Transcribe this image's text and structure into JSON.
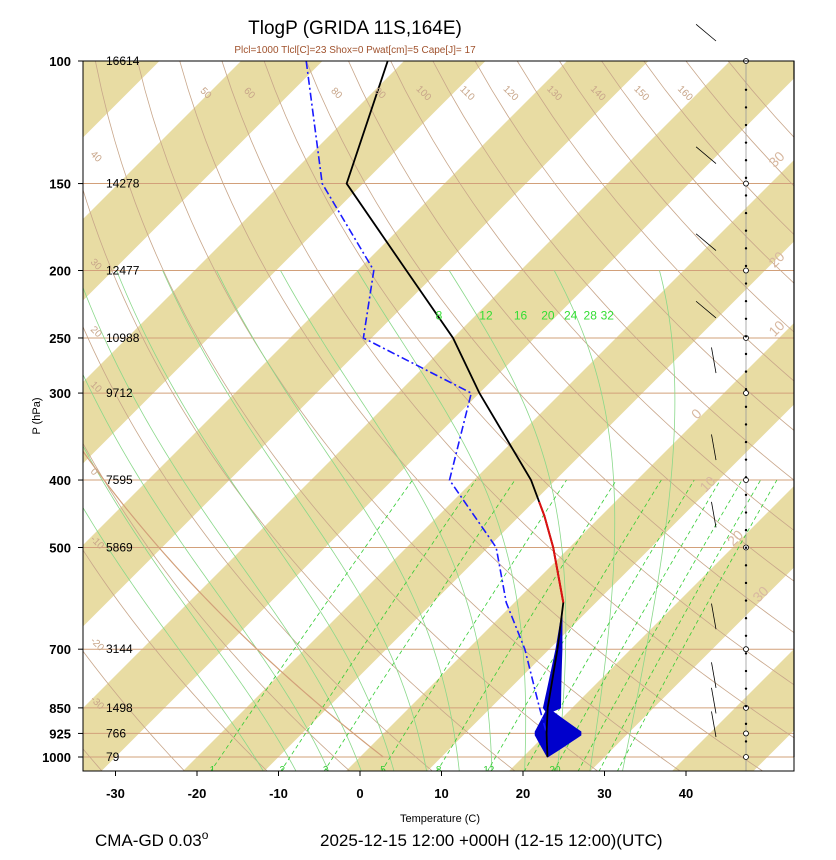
{
  "header": {
    "title": "TlogP   (GRIDA  11S,164E)",
    "params": "Plcl=1000 Tlcl[C]=23 Shox=0 Pwat[cm]=5 Cape[J]= 17"
  },
  "footer": {
    "left_text": "CMA-GD 0.03",
    "left_superscript": "o",
    "right_text": "2025-12-15 12:00 +000H (12-15 12:00)(UTC)"
  },
  "chart_data": {
    "type": "skew-t log-p",
    "title": "TlogP   (GRIDA  11S,164E)",
    "xlabel": "Temperature (C)",
    "ylabel": "P (hPa)",
    "pressure_levels": [
      {
        "p": 100,
        "label": "100",
        "height": "16614"
      },
      {
        "p": 150,
        "label": "150",
        "height": "14278"
      },
      {
        "p": 200,
        "label": "200",
        "height": "12477"
      },
      {
        "p": 250,
        "label": "250",
        "height": "10988"
      },
      {
        "p": 300,
        "label": "300",
        "height": "9712"
      },
      {
        "p": 400,
        "label": "400",
        "height": "7595"
      },
      {
        "p": 500,
        "label": "500",
        "height": "5869"
      },
      {
        "p": 700,
        "label": "700",
        "height": "3144"
      },
      {
        "p": 850,
        "label": "850",
        "height": "1498"
      },
      {
        "p": 925,
        "label": "925",
        "height": "766"
      },
      {
        "p": 1000,
        "label": "1000",
        "height": "79"
      }
    ],
    "x_ticks": [
      "-30",
      "-20",
      "-10",
      "0",
      "10",
      "20",
      "30",
      "40"
    ],
    "x_tick_values": [
      -30,
      -20,
      -10,
      0,
      10,
      20,
      30,
      40
    ],
    "xlim": [
      -35,
      50
    ],
    "ylim": [
      100,
      1050
    ],
    "isotherm_labels": [
      {
        "t": 30,
        "p": 140,
        "label": "30"
      },
      {
        "t": 20,
        "p": 195,
        "label": "20"
      },
      {
        "t": 10,
        "p": 245,
        "label": "10"
      },
      {
        "t": 0,
        "p": 325,
        "label": "0"
      },
      {
        "t": 10,
        "p": 410,
        "label": "10"
      },
      {
        "t": 20,
        "p": 490,
        "label": "20"
      },
      {
        "t": 30,
        "p": 590,
        "label": "30"
      }
    ],
    "theta_labels": [
      "50",
      "60",
      "80",
      "90",
      "100",
      "110",
      "120",
      "130",
      "140",
      "150",
      "160",
      "40",
      "30",
      "20",
      "10",
      "0",
      "-10",
      "-20",
      "-30"
    ],
    "theta_top_values": [
      50,
      60,
      80,
      90,
      100,
      110,
      120,
      130,
      140,
      150,
      160
    ],
    "theta_left_values": [
      40,
      30,
      20,
      10,
      0,
      -10,
      -20,
      -30
    ],
    "mixing_ratio_top": [
      "8",
      "12",
      "16",
      "20",
      "24",
      "28",
      "32"
    ],
    "mixing_ratio_top_values": [
      8,
      12,
      16,
      20,
      24,
      28,
      32
    ],
    "mixing_ratio_bottom": [
      "1",
      "2",
      "3",
      "5",
      "8",
      "12",
      "20"
    ],
    "mixing_ratio_bottom_values": [
      1,
      2,
      3,
      5,
      8,
      12,
      20
    ],
    "temperature_profile": [
      {
        "p": 100,
        "t": -82
      },
      {
        "p": 150,
        "t": -72
      },
      {
        "p": 200,
        "t": -54
      },
      {
        "p": 250,
        "t": -40
      },
      {
        "p": 300,
        "t": -30
      },
      {
        "p": 400,
        "t": -13
      },
      {
        "p": 450,
        "t": -7
      },
      {
        "p": 500,
        "t": -2
      },
      {
        "p": 600,
        "t": 6
      },
      {
        "p": 700,
        "t": 11
      },
      {
        "p": 850,
        "t": 17
      },
      {
        "p": 925,
        "t": 20
      },
      {
        "p": 1000,
        "t": 23
      }
    ],
    "dewpoint_profile": [
      {
        "p": 100,
        "td": -92
      },
      {
        "p": 150,
        "td": -75
      },
      {
        "p": 200,
        "td": -58
      },
      {
        "p": 250,
        "td": -51
      },
      {
        "p": 300,
        "td": -31
      },
      {
        "p": 400,
        "td": -23
      },
      {
        "p": 500,
        "td": -9
      },
      {
        "p": 600,
        "td": -1
      },
      {
        "p": 700,
        "td": 7
      },
      {
        "p": 850,
        "td": 16
      },
      {
        "p": 925,
        "td": 20
      },
      {
        "p": 1000,
        "td": 23
      }
    ],
    "red_segment_levels": [
      430,
      600
    ],
    "env_polyline": [
      {
        "p": 100,
        "t": 49
      },
      {
        "p": 400,
        "t": 49
      },
      {
        "p": 600,
        "t": 62
      },
      {
        "p": 1000,
        "t": 62
      }
    ],
    "colors": {
      "temperature": "#000000",
      "dewpoint": "#1a1aff",
      "parcel_segment": "#dd1111",
      "cape_fill": "#0000cc",
      "isotherm_band": "#e8dca3",
      "isobar": "#d2a07a",
      "dry_adiabat": "#c8a68a",
      "moist_adiabat": "#8ad88a",
      "mixing_ratio": "#33cc33"
    }
  }
}
